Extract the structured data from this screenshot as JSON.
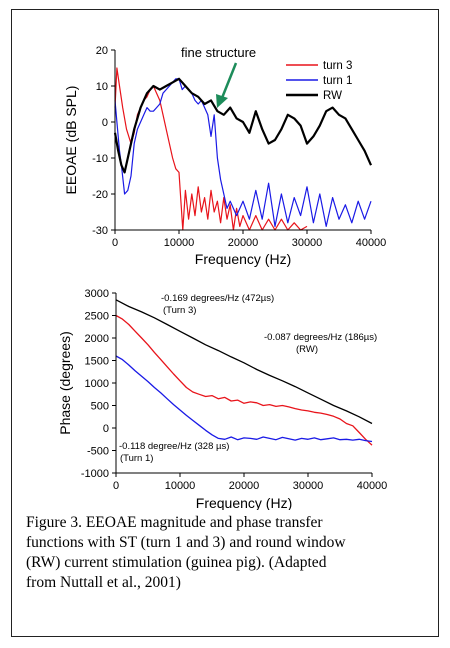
{
  "chart_data": [
    {
      "type": "line",
      "ylabel": "EEOAE (dB SPL)",
      "xlabel": "Frequency (Hz)",
      "xlim": [
        0,
        40000
      ],
      "ylim": [
        -30,
        20
      ],
      "xticks": [
        0,
        10000,
        20000,
        30000,
        40000
      ],
      "yticks": [
        20,
        10,
        0,
        -10,
        -20,
        -30
      ],
      "xtick_labels": [
        "0",
        "10000",
        "20000",
        "30000",
        "40000"
      ],
      "ytick_labels": [
        "20",
        "10",
        "0",
        "-10",
        "-20",
        "-30"
      ],
      "annotation": {
        "text": "fine structure",
        "x": 16500,
        "y": 3
      },
      "legend_position": "top-right",
      "series": [
        {
          "name": "turn 3",
          "color": "#e8141b",
          "x": [
            0,
            300,
            700,
            1200,
            1800,
            2500,
            3000,
            3500,
            4000,
            4500,
            5000,
            5500,
            6000,
            6500,
            7000,
            7500,
            8000,
            8500,
            9000,
            9500,
            10000,
            10300,
            10600,
            11000,
            11500,
            12000,
            12500,
            13000,
            13500,
            14000,
            14500,
            15000,
            15500,
            16000,
            16500,
            17000,
            17500,
            18000,
            18500,
            19000,
            19500,
            20000,
            21000,
            22000,
            23000,
            24000,
            25000,
            26000,
            27000,
            28000,
            29000,
            30000
          ],
          "y": [
            4,
            15,
            10,
            4,
            -2,
            -6,
            -3,
            2,
            4,
            6,
            7,
            9,
            10,
            8,
            6,
            2,
            -2,
            -6,
            -10,
            -13,
            -14,
            -22,
            -30,
            -19,
            -27,
            -20,
            -26,
            -18,
            -25,
            -21,
            -27,
            -19,
            -25,
            -22,
            -28,
            -21,
            -27,
            -23,
            -30,
            -24,
            -29,
            -26,
            -30,
            -26,
            -30,
            -27,
            -30,
            -27,
            -30,
            -28,
            -30,
            -29
          ]
        },
        {
          "name": "turn 1",
          "color": "#1a1ae6",
          "x": [
            0,
            300,
            700,
            1000,
            1500,
            2000,
            2500,
            3000,
            3500,
            4000,
            4500,
            5000,
            5500,
            6000,
            6500,
            7000,
            7500,
            8000,
            8500,
            9000,
            9500,
            10000,
            10500,
            11000,
            11500,
            12000,
            12500,
            13000,
            13500,
            14000,
            14500,
            15000,
            15500,
            16000,
            16500,
            17000,
            17500,
            18000,
            19000,
            20000,
            21000,
            22000,
            23000,
            24000,
            25000,
            26000,
            27000,
            28000,
            29000,
            30000,
            31000,
            32000,
            33000,
            34000,
            35000,
            36000,
            37000,
            38000,
            39000,
            40000
          ],
          "y": [
            6,
            0,
            -8,
            -12,
            -20,
            -19,
            -15,
            -6,
            -2,
            0,
            2,
            4,
            3,
            3,
            4,
            5,
            8,
            9,
            10,
            11,
            12,
            12,
            9,
            10,
            9,
            8,
            6,
            5,
            6,
            4,
            2,
            -4,
            2,
            -10,
            -16,
            -20,
            -24,
            -22,
            -26,
            -22,
            -27,
            -19,
            -27,
            -17,
            -29,
            -20,
            -28,
            -21,
            -26,
            -18,
            -28,
            -20,
            -29,
            -21,
            -27,
            -23,
            -28,
            -22,
            -27,
            -22
          ]
        },
        {
          "name": "RW",
          "color": "#000000",
          "x": [
            0,
            500,
            1000,
            1500,
            2000,
            3000,
            4000,
            5000,
            6000,
            7000,
            8000,
            9000,
            10000,
            11000,
            12000,
            13000,
            14000,
            15000,
            16000,
            17000,
            18000,
            19000,
            20000,
            21000,
            22000,
            23000,
            24000,
            25000,
            26000,
            27000,
            28000,
            29000,
            30000,
            31000,
            32000,
            33000,
            34000,
            35000,
            36000,
            37000,
            38000,
            39000,
            40000
          ],
          "y": [
            -3,
            -8,
            -12,
            -14,
            -10,
            -2,
            4,
            8,
            10,
            9,
            10,
            11,
            12,
            10,
            8,
            7,
            5,
            6,
            3,
            2,
            4,
            1,
            0,
            -3,
            3,
            -2,
            -6,
            -5,
            -2,
            2,
            1,
            -1,
            -6,
            -4,
            -1,
            3,
            4,
            2,
            1,
            -2,
            -5,
            -8,
            -12
          ]
        }
      ]
    },
    {
      "type": "line",
      "ylabel": "Phase (degrees)",
      "xlabel": "Frequency (Hz)",
      "xlim": [
        0,
        40000
      ],
      "ylim": [
        -1000,
        3000
      ],
      "xticks": [
        0,
        10000,
        20000,
        30000,
        40000
      ],
      "yticks": [
        3000,
        2500,
        2000,
        1500,
        1000,
        500,
        0,
        -500,
        -1000
      ],
      "xtick_labels": [
        "0",
        "10000",
        "20000",
        "30000",
        "40000"
      ],
      "ytick_labels": [
        "3000",
        "2500",
        "2000",
        "1500",
        "1000",
        "500",
        "0",
        "-500",
        "-1000"
      ],
      "annotations": [
        {
          "line1": "-0.169 degrees/Hz (472µs)",
          "line2": "(Turn 3)"
        },
        {
          "line1": "-0.087 degrees/Hz (186µs)",
          "line2": "(RW)"
        },
        {
          "line1": "-0.118 degree/Hz (328 µs)",
          "line2": "(Turn 1)"
        }
      ],
      "series": [
        {
          "color": "#e8141b",
          "x": [
            0,
            1000,
            2000,
            3000,
            4000,
            5000,
            6000,
            7000,
            8000,
            9000,
            10000,
            11000,
            12000,
            13000,
            14000,
            15000,
            16000,
            17000,
            18000,
            19000,
            20000,
            21000,
            22000,
            23000,
            24000,
            25000,
            26000,
            27000,
            28000,
            29000,
            30000,
            31000,
            32000,
            33000,
            34000,
            35000,
            36000,
            37000,
            38000,
            39000,
            40000
          ],
          "y": [
            2500,
            2420,
            2300,
            2150,
            2000,
            1850,
            1680,
            1520,
            1360,
            1200,
            1050,
            900,
            800,
            750,
            700,
            720,
            650,
            680,
            600,
            620,
            550,
            580,
            560,
            500,
            520,
            480,
            500,
            470,
            430,
            400,
            380,
            350,
            330,
            300,
            260,
            200,
            100,
            50,
            -100,
            -250,
            -380
          ]
        },
        {
          "color": "#1a1ae6",
          "x": [
            0,
            1000,
            2000,
            3000,
            4000,
            5000,
            6000,
            7000,
            8000,
            9000,
            10000,
            11000,
            12000,
            13000,
            14000,
            15000,
            16000,
            17000,
            18000,
            19000,
            20000,
            21000,
            22000,
            23000,
            24000,
            25000,
            26000,
            27000,
            28000,
            29000,
            30000,
            31000,
            32000,
            33000,
            34000,
            35000,
            36000,
            37000,
            38000,
            39000,
            40000
          ],
          "y": [
            1600,
            1520,
            1400,
            1270,
            1150,
            1030,
            900,
            780,
            650,
            520,
            400,
            280,
            170,
            60,
            -50,
            -150,
            -230,
            -250,
            -200,
            -260,
            -220,
            -230,
            -250,
            -200,
            -230,
            -260,
            -210,
            -240,
            -270,
            -230,
            -250,
            -220,
            -260,
            -240,
            -220,
            -260,
            -250,
            -270,
            -250,
            -280,
            -300
          ]
        },
        {
          "color": "#000000",
          "x": [
            0,
            2000,
            4000,
            6000,
            8000,
            10000,
            12000,
            14000,
            16000,
            18000,
            20000,
            22000,
            24000,
            26000,
            28000,
            30000,
            32000,
            34000,
            36000,
            38000,
            40000
          ],
          "y": [
            2850,
            2700,
            2580,
            2450,
            2300,
            2150,
            2000,
            1850,
            1720,
            1580,
            1450,
            1300,
            1170,
            1050,
            920,
            780,
            640,
            500,
            380,
            250,
            100
          ]
        }
      ]
    }
  ],
  "caption": {
    "lines": [
      "Figure 3. EEOAE magnitude and phase transfer",
      "functions with ST (turn 1 and 3) and round window",
      "(RW) current stimulation (guinea pig). (Adapted",
      "from Nuttall et al., 2001)"
    ]
  }
}
